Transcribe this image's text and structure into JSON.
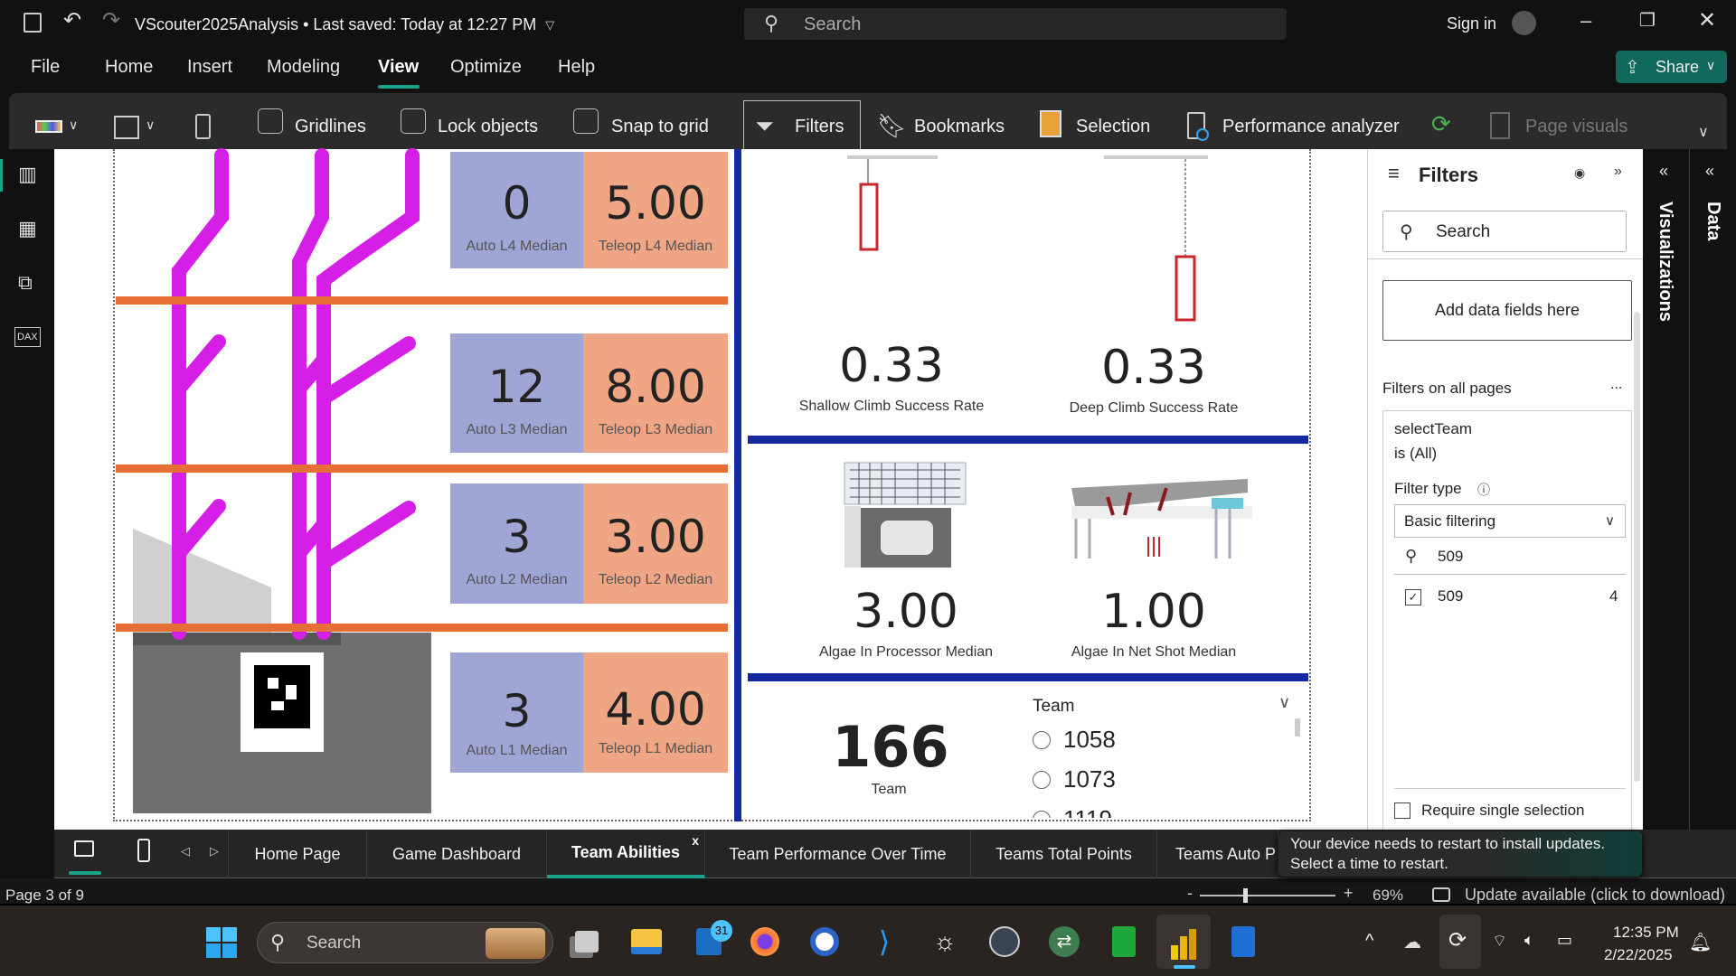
{
  "titlebar": {
    "title": "VScouter2025Analysis • Last saved: Today at 12:27 PM",
    "search_placeholder": "Search",
    "sign_in": "Sign in"
  },
  "menu": {
    "items": [
      "File",
      "Home",
      "Insert",
      "Modeling",
      "View",
      "Optimize",
      "Help"
    ],
    "active": "View",
    "share": "Share"
  },
  "ribbon": {
    "gridlines": "Gridlines",
    "lock_objects": "Lock objects",
    "snap_to_grid": "Snap to grid",
    "filters": "Filters",
    "bookmarks": "Bookmarks",
    "selection": "Selection",
    "performance_analyzer": "Performance analyzer",
    "page_visuals": "Page visuals"
  },
  "report": {
    "coral": [
      {
        "auto": "0",
        "auto_label": "Auto L4 Median",
        "teleop": "5.00",
        "teleop_label": "Teleop L4 Median"
      },
      {
        "auto": "12",
        "auto_label": "Auto L3 Median",
        "teleop": "8.00",
        "teleop_label": "Teleop L3 Median"
      },
      {
        "auto": "3",
        "auto_label": "Auto L2 Median",
        "teleop": "3.00",
        "teleop_label": "Teleop L2 Median"
      },
      {
        "auto": "3",
        "auto_label": "Auto L1 Median",
        "teleop": "4.00",
        "teleop_label": "Teleop L1 Median"
      }
    ],
    "shallow": {
      "value": "0.33",
      "label": "Shallow Climb Success Rate"
    },
    "deep": {
      "value": "0.33",
      "label": "Deep Climb Success Rate"
    },
    "processor": {
      "value": "3.00",
      "label": "Algae In Processor Median"
    },
    "net": {
      "value": "1.00",
      "label": "Algae In Net Shot Median"
    },
    "team_card": {
      "value": "166",
      "label": "Team"
    },
    "slicer": {
      "title": "Team",
      "items": [
        "1058",
        "1073",
        "1119"
      ]
    }
  },
  "filters": {
    "title": "Filters",
    "search_placeholder": "Search",
    "add_fields": "Add data fields here",
    "section": "Filters on all pages",
    "more": "...",
    "field": "selectTeam",
    "condition": "is (All)",
    "filter_type_label": "Filter type",
    "filter_type": "Basic filtering",
    "search_value": "509",
    "values": [
      {
        "label": "509",
        "count": "4",
        "checked": true
      }
    ],
    "require_single": "Require single selection"
  },
  "side_panes": {
    "visualizations": "Visualizations",
    "data": "Data"
  },
  "page_tabs": {
    "tabs": [
      "Home Page",
      "Game Dashboard",
      "Team Abilities",
      "Team Performance Over Time",
      "Teams Total Points",
      "Teams Auto P"
    ],
    "active": "Team Abilities",
    "close": "x"
  },
  "toast": {
    "line1": "Your device needs to restart to install updates.",
    "line2": "Select a time to restart."
  },
  "status": {
    "page": "Page 3 of 9",
    "zoom": "69%",
    "update": "Update available (click to download)"
  },
  "taskbar": {
    "search": "Search",
    "badge": "31",
    "time": "12:35 PM",
    "date": "2/22/2025"
  },
  "colors": {
    "auto_card": "#9fa6d6",
    "teleop_card": "#f0a584",
    "divider_orange": "#e56f35",
    "divider_blue": "#1428a0",
    "accent": "#1aa38a"
  }
}
